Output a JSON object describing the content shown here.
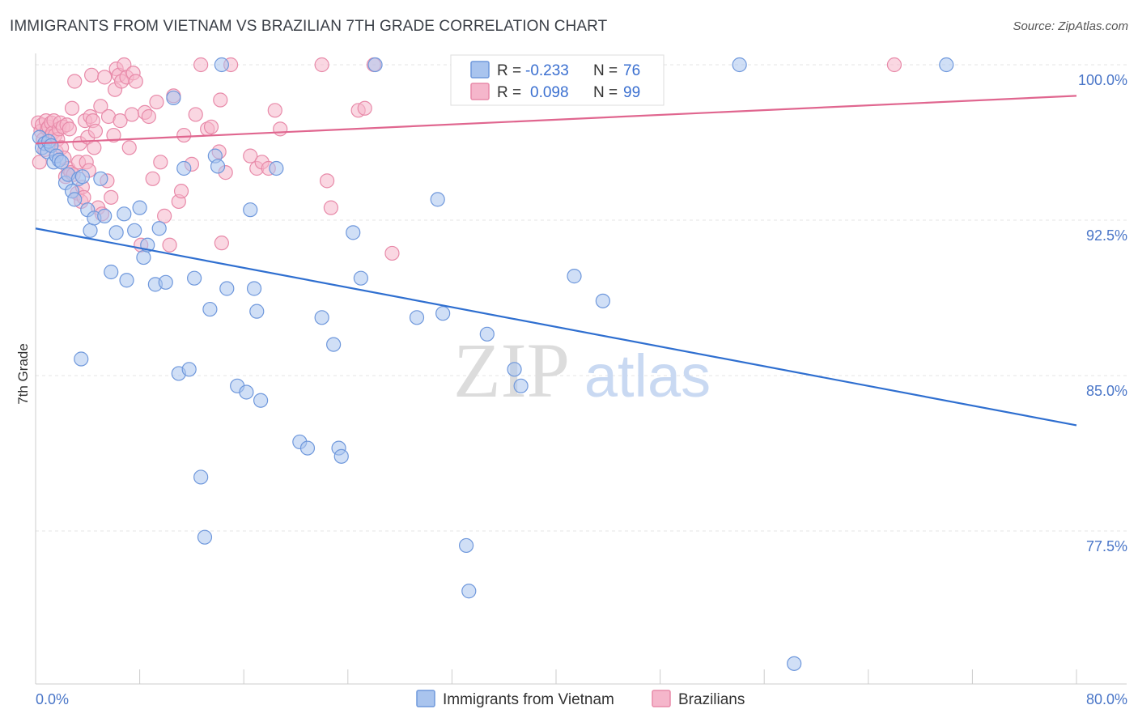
{
  "title": "IMMIGRANTS FROM VIETNAM VS BRAZILIAN 7TH GRADE CORRELATION CHART",
  "source": "Source: ZipAtlas.com",
  "watermark": {
    "zip": "ZIP",
    "atlas": "atlas"
  },
  "colors": {
    "blue_fill": "#a9c4ee",
    "blue_stroke": "#6f98dc",
    "blue_line": "#2f6fd0",
    "pink_fill": "#f5b6cb",
    "pink_stroke": "#e88aa9",
    "pink_line": "#e0668f",
    "axis_label": "#4a76c8",
    "grid": "#e4e4e4"
  },
  "legend_box": {
    "rows": [
      {
        "r_label": "R =",
        "r_value": "-0.233",
        "n_label": "N =",
        "n_value": "76"
      },
      {
        "r_label": "R =",
        "r_value": "0.098",
        "n_label": "N =",
        "n_value": "99"
      }
    ]
  },
  "chart_data": {
    "type": "scatter",
    "title": "IMMIGRANTS FROM VIETNAM VS BRAZILIAN 7TH GRADE CORRELATION CHART",
    "xlabel": "",
    "ylabel": "7th Grade",
    "xlim": [
      0,
      80
    ],
    "ylim": [
      70,
      100.7
    ],
    "x_tick_labels": [
      "0.0%",
      "80.0%"
    ],
    "y_ticks": [
      77.5,
      85.0,
      92.5,
      100.0
    ],
    "y_tick_labels": [
      "77.5%",
      "85.0%",
      "92.5%",
      "100.0%"
    ],
    "grid": true,
    "legend_placement": "bottom",
    "series": [
      {
        "name": "Immigrants from Vietnam",
        "color": "#a9c4ee",
        "trend": {
          "x0": 0,
          "y0": 92.1,
          "x1": 80,
          "y1": 82.6
        },
        "points": [
          [
            0.3,
            96.5
          ],
          [
            0.5,
            96.0
          ],
          [
            0.7,
            96.2
          ],
          [
            0.9,
            95.8
          ],
          [
            1.0,
            96.3
          ],
          [
            1.2,
            96.1
          ],
          [
            1.4,
            95.3
          ],
          [
            1.6,
            95.6
          ],
          [
            1.8,
            95.4
          ],
          [
            2.0,
            95.3
          ],
          [
            2.3,
            94.3
          ],
          [
            2.5,
            94.7
          ],
          [
            2.8,
            93.9
          ],
          [
            3.0,
            93.5
          ],
          [
            3.3,
            94.5
          ],
          [
            3.6,
            94.6
          ],
          [
            4.0,
            93.0
          ],
          [
            4.2,
            92.0
          ],
          [
            4.5,
            92.6
          ],
          [
            5.0,
            94.5
          ],
          [
            5.3,
            92.7
          ],
          [
            5.8,
            90.0
          ],
          [
            6.2,
            91.9
          ],
          [
            6.8,
            92.8
          ],
          [
            7.0,
            89.6
          ],
          [
            7.6,
            92.0
          ],
          [
            8.0,
            93.1
          ],
          [
            8.3,
            90.7
          ],
          [
            8.6,
            91.3
          ],
          [
            9.2,
            89.4
          ],
          [
            9.5,
            92.1
          ],
          [
            10.0,
            89.5
          ],
          [
            10.6,
            98.4
          ],
          [
            11.0,
            85.1
          ],
          [
            11.4,
            95.0
          ],
          [
            11.8,
            85.3
          ],
          [
            12.2,
            89.7
          ],
          [
            12.7,
            80.1
          ],
          [
            13.0,
            77.2
          ],
          [
            13.4,
            88.2
          ],
          [
            13.8,
            95.6
          ],
          [
            14.0,
            95.1
          ],
          [
            14.3,
            100.0
          ],
          [
            14.7,
            89.2
          ],
          [
            15.5,
            84.5
          ],
          [
            16.2,
            84.2
          ],
          [
            16.5,
            93.0
          ],
          [
            16.8,
            89.2
          ],
          [
            17.0,
            88.1
          ],
          [
            17.3,
            83.8
          ],
          [
            18.5,
            95.0
          ],
          [
            20.3,
            81.8
          ],
          [
            20.9,
            81.5
          ],
          [
            22.0,
            87.8
          ],
          [
            22.9,
            86.5
          ],
          [
            23.3,
            81.5
          ],
          [
            23.5,
            81.1
          ],
          [
            24.4,
            91.9
          ],
          [
            25.0,
            89.7
          ],
          [
            26.1,
            100.0
          ],
          [
            29.3,
            87.8
          ],
          [
            30.9,
            93.5
          ],
          [
            31.3,
            88.0
          ],
          [
            33.1,
            76.8
          ],
          [
            33.3,
            74.6
          ],
          [
            33.8,
            100.0
          ],
          [
            34.7,
            87.0
          ],
          [
            36.8,
            85.3
          ],
          [
            37.3,
            84.5
          ],
          [
            39.9,
            100.0
          ],
          [
            41.4,
            89.8
          ],
          [
            43.6,
            88.6
          ],
          [
            54.1,
            100.0
          ],
          [
            58.3,
            71.1
          ],
          [
            70.0,
            100.0
          ],
          [
            3.5,
            85.8
          ]
        ]
      },
      {
        "name": "Brazilians",
        "color": "#f5b6cb",
        "trend": {
          "x0": 0,
          "y0": 96.2,
          "x1": 80,
          "y1": 98.5
        },
        "points": [
          [
            0.2,
            97.2
          ],
          [
            0.3,
            95.3
          ],
          [
            0.4,
            96.8
          ],
          [
            0.5,
            97.1
          ],
          [
            0.6,
            96.4
          ],
          [
            0.7,
            95.9
          ],
          [
            0.8,
            97.3
          ],
          [
            0.9,
            96.9
          ],
          [
            1.0,
            97.0
          ],
          [
            1.1,
            96.5
          ],
          [
            1.2,
            97.2
          ],
          [
            1.3,
            96.7
          ],
          [
            1.4,
            97.3
          ],
          [
            1.5,
            96.6
          ],
          [
            1.6,
            95.8
          ],
          [
            1.7,
            96.4
          ],
          [
            1.8,
            96.9
          ],
          [
            1.9,
            97.2
          ],
          [
            2.0,
            96.0
          ],
          [
            2.1,
            97.0
          ],
          [
            2.2,
            95.5
          ],
          [
            2.3,
            94.6
          ],
          [
            2.4,
            97.1
          ],
          [
            2.5,
            95.0
          ],
          [
            2.6,
            96.9
          ],
          [
            2.7,
            94.8
          ],
          [
            2.8,
            97.9
          ],
          [
            2.9,
            94.7
          ],
          [
            3.0,
            99.2
          ],
          [
            3.2,
            93.8
          ],
          [
            3.3,
            95.3
          ],
          [
            3.4,
            96.2
          ],
          [
            3.5,
            93.4
          ],
          [
            3.6,
            94.1
          ],
          [
            3.7,
            93.6
          ],
          [
            3.8,
            97.3
          ],
          [
            3.9,
            95.3
          ],
          [
            4.0,
            96.5
          ],
          [
            4.1,
            94.9
          ],
          [
            4.2,
            97.5
          ],
          [
            4.3,
            99.5
          ],
          [
            4.4,
            97.3
          ],
          [
            4.5,
            96.0
          ],
          [
            4.6,
            96.8
          ],
          [
            4.8,
            93.1
          ],
          [
            5.0,
            98.0
          ],
          [
            5.1,
            92.8
          ],
          [
            5.3,
            99.4
          ],
          [
            5.5,
            94.4
          ],
          [
            5.6,
            97.5
          ],
          [
            5.8,
            93.6
          ],
          [
            6.0,
            96.6
          ],
          [
            6.1,
            98.8
          ],
          [
            6.2,
            99.8
          ],
          [
            6.4,
            99.5
          ],
          [
            6.5,
            97.3
          ],
          [
            6.6,
            99.2
          ],
          [
            6.8,
            100.0
          ],
          [
            7.0,
            99.4
          ],
          [
            7.2,
            96.0
          ],
          [
            7.4,
            97.6
          ],
          [
            7.5,
            99.6
          ],
          [
            7.7,
            99.2
          ],
          [
            8.1,
            91.3
          ],
          [
            8.4,
            97.7
          ],
          [
            8.7,
            97.5
          ],
          [
            9.0,
            94.5
          ],
          [
            9.3,
            98.2
          ],
          [
            9.6,
            95.3
          ],
          [
            9.9,
            92.7
          ],
          [
            10.3,
            91.3
          ],
          [
            10.6,
            98.5
          ],
          [
            11.0,
            93.4
          ],
          [
            11.2,
            93.9
          ],
          [
            11.4,
            96.6
          ],
          [
            12.0,
            95.2
          ],
          [
            12.3,
            97.6
          ],
          [
            12.7,
            100.0
          ],
          [
            13.2,
            96.9
          ],
          [
            13.5,
            97.0
          ],
          [
            14.1,
            95.8
          ],
          [
            14.2,
            98.3
          ],
          [
            14.3,
            91.4
          ],
          [
            14.6,
            94.8
          ],
          [
            15.0,
            100.0
          ],
          [
            16.5,
            95.6
          ],
          [
            17.0,
            95.0
          ],
          [
            17.4,
            95.3
          ],
          [
            17.9,
            95.0
          ],
          [
            18.4,
            97.8
          ],
          [
            18.8,
            96.9
          ],
          [
            22.0,
            100.0
          ],
          [
            22.4,
            94.4
          ],
          [
            22.7,
            93.1
          ],
          [
            24.8,
            97.8
          ],
          [
            25.3,
            97.9
          ],
          [
            26.0,
            100.0
          ],
          [
            27.4,
            90.9
          ],
          [
            66.0,
            100.0
          ]
        ]
      }
    ]
  },
  "legend": [
    {
      "label": "Immigrants from Vietnam",
      "color": "#a9c4ee"
    },
    {
      "label": "Brazilians",
      "color": "#f5b6cb"
    }
  ]
}
